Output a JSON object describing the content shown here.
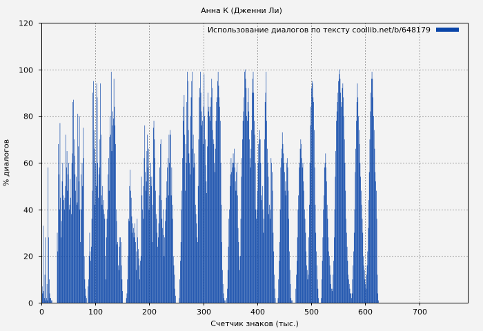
{
  "chart_data": {
    "type": "bar",
    "title": "Анна К (Дженни Ли)",
    "xlabel": "Счетчик знаков (тыс.)",
    "ylabel": "% диалогов",
    "xlim": [
      0,
      790
    ],
    "ylim": [
      0,
      120
    ],
    "xticks": [
      "0",
      "100",
      "200",
      "300",
      "400",
      "500",
      "600",
      "700"
    ],
    "yticks": [
      "0",
      "20",
      "40",
      "60",
      "80",
      "100",
      "120"
    ],
    "grid": true,
    "legend_position": "top-right",
    "series": [
      {
        "name": "Использование диалогов по тексту coollib.net/b/648179",
        "color": "#0a45a8",
        "x_step": 1,
        "values": [
          2,
          7,
          4,
          33,
          5,
          2,
          12,
          28,
          1,
          2,
          8,
          1,
          58,
          28,
          10,
          4,
          2,
          2,
          1,
          1,
          0,
          0,
          0,
          0,
          0,
          0,
          0,
          0,
          0,
          30,
          22,
          68,
          55,
          40,
          77,
          45,
          28,
          35,
          52,
          60,
          46,
          44,
          40,
          45,
          50,
          72,
          58,
          65,
          48,
          55,
          60,
          40,
          42,
          53,
          45,
          38,
          60,
          64,
          86,
          87,
          70,
          63,
          55,
          48,
          54,
          42,
          43,
          81,
          67,
          52,
          80,
          40,
          26,
          55,
          40,
          60,
          50,
          75,
          62,
          20,
          10,
          6,
          3,
          2,
          0,
          0,
          7,
          10,
          20,
          30,
          22,
          18,
          24,
          36,
          48,
          90,
          95,
          74,
          66,
          42,
          60,
          50,
          94,
          88,
          60,
          45,
          55,
          58,
          70,
          94,
          72,
          46,
          42,
          50,
          40,
          44,
          38,
          36,
          20,
          10,
          28,
          36,
          40,
          55,
          62,
          48,
          71,
          80,
          72,
          99,
          65,
          76,
          82,
          79,
          96,
          84,
          76,
          68,
          40,
          35,
          25,
          26,
          16,
          14,
          24,
          28,
          28,
          26,
          16,
          10,
          5,
          0,
          0,
          0,
          0,
          0,
          0,
          2,
          4,
          10,
          20,
          36,
          35,
          50,
          57,
          48,
          45,
          37,
          30,
          34,
          32,
          28,
          30,
          34,
          26,
          14,
          22,
          36,
          28,
          23,
          19,
          16,
          10,
          18,
          20,
          54,
          46,
          40,
          36,
          50,
          62,
          76,
          56,
          48,
          52,
          65,
          72,
          58,
          66,
          40,
          46,
          54,
          60,
          50,
          54,
          26,
          42,
          75,
          78,
          70,
          62,
          48,
          38,
          36,
          30,
          24,
          28,
          34,
          46,
          58,
          68,
          70,
          44,
          36,
          32,
          40,
          29,
          20,
          28,
          35,
          40,
          45,
          52,
          58,
          62,
          46,
          72,
          60,
          74,
          72,
          46,
          58,
          36,
          42,
          20,
          16,
          12,
          6,
          3,
          0,
          0,
          0,
          0,
          0,
          0,
          2,
          10,
          18,
          26,
          40,
          48,
          62,
          78,
          84,
          89,
          72,
          48,
          68,
          60,
          86,
          99,
          95,
          74,
          64,
          60,
          55,
          80,
          88,
          95,
          99,
          66,
          72,
          58,
          64,
          60,
          42,
          38,
          34,
          28,
          26,
          50,
          70,
          88,
          92,
          99,
          90,
          82,
          76,
          78,
          68,
          84,
          98,
          80,
          70,
          59,
          52,
          47,
          67,
          90,
          82,
          84,
          80,
          78,
          84,
          88,
          96,
          92,
          74,
          70,
          68,
          60,
          56,
          66,
          78,
          86,
          88,
          95,
          99,
          93,
          88,
          84,
          78,
          60,
          42,
          26,
          14,
          8,
          4,
          2,
          1,
          1,
          0,
          0,
          2,
          6,
          14,
          24,
          36,
          40,
          50,
          55,
          62,
          56,
          60,
          58,
          64,
          60,
          66,
          58,
          52,
          48,
          56,
          60,
          46,
          32,
          26,
          20,
          14,
          20,
          36,
          54,
          62,
          70,
          78,
          82,
          88,
          99,
          100,
          96,
          92,
          80,
          78,
          86,
          92,
          82,
          70,
          62,
          58,
          66,
          74,
          90,
          96,
          99,
          90,
          78,
          72,
          60,
          40,
          36,
          40,
          48,
          60,
          68,
          70,
          74,
          70,
          60,
          46,
          44,
          50,
          40,
          30,
          36,
          70,
          86,
          90,
          99,
          78,
          66,
          60,
          54,
          38,
          42,
          36,
          40,
          62,
          60,
          56,
          48,
          30,
          22,
          12,
          6,
          2,
          0,
          0,
          0,
          0,
          2,
          10,
          18,
          26,
          40,
          58,
          62,
          66,
          73,
          68,
          64,
          60,
          56,
          48,
          52,
          46,
          60,
          62,
          58,
          48,
          36,
          22,
          14,
          8,
          2,
          1,
          1,
          0,
          0,
          0,
          0,
          0,
          0,
          6,
          12,
          18,
          28,
          40,
          46,
          58,
          60,
          66,
          70,
          68,
          62,
          58,
          60,
          52,
          48,
          40,
          36,
          30,
          22,
          16,
          14,
          10,
          12,
          28,
          42,
          60,
          76,
          84,
          92,
          95,
          94,
          88,
          86,
          74,
          58,
          42,
          30,
          22,
          16,
          10,
          6,
          2,
          0,
          0,
          0,
          0,
          2,
          10,
          18,
          28,
          40,
          46,
          58,
          60,
          64,
          58,
          52,
          42,
          36,
          28,
          22,
          20,
          16,
          12,
          8,
          6,
          5,
          6,
          12,
          18,
          28,
          40,
          54,
          65,
          78,
          82,
          86,
          90,
          95,
          98,
          100,
          96,
          90,
          84,
          86,
          92,
          94,
          88,
          80,
          70,
          60,
          48,
          36,
          30,
          24,
          18,
          12,
          10,
          8,
          6,
          4,
          4,
          2,
          4,
          10,
          16,
          22,
          30,
          40,
          56,
          66,
          78,
          86,
          94,
          88,
          80,
          74,
          68,
          60,
          54,
          48,
          42,
          36,
          30,
          20,
          16,
          14,
          10,
          8,
          6,
          12,
          16,
          22,
          32,
          44,
          56,
          70,
          82,
          90,
          96,
          99,
          96,
          88,
          80,
          74,
          66,
          56,
          52,
          48,
          36,
          12,
          4,
          1
        ]
      }
    ]
  }
}
